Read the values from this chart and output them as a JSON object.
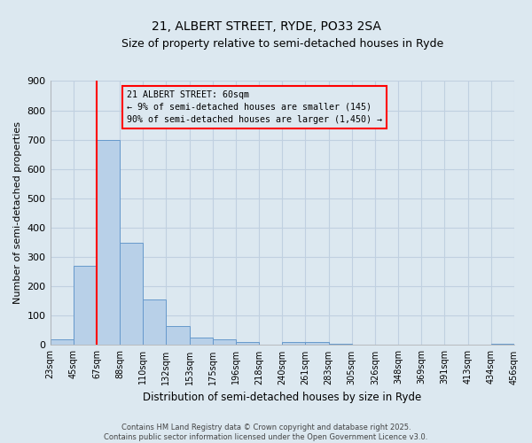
{
  "title": "21, ALBERT STREET, RYDE, PO33 2SA",
  "subtitle": "Size of property relative to semi-detached houses in Ryde",
  "xlabel": "Distribution of semi-detached houses by size in Ryde",
  "ylabel": "Number of semi-detached properties",
  "bin_labels": [
    "23sqm",
    "45sqm",
    "67sqm",
    "88sqm",
    "110sqm",
    "132sqm",
    "153sqm",
    "175sqm",
    "196sqm",
    "218sqm",
    "240sqm",
    "261sqm",
    "283sqm",
    "305sqm",
    "326sqm",
    "348sqm",
    "369sqm",
    "391sqm",
    "413sqm",
    "434sqm",
    "456sqm"
  ],
  "bar_heights": [
    20,
    270,
    700,
    350,
    155,
    65,
    25,
    20,
    10,
    0,
    10,
    10,
    5,
    0,
    0,
    0,
    0,
    0,
    0,
    5
  ],
  "bar_color": "#b8d0e8",
  "bar_edge_color": "#6699cc",
  "grid_color": "#c0d0e0",
  "background_color": "#dce8f0",
  "red_line_x": 2,
  "annotation_title": "21 ALBERT STREET: 60sqm",
  "annotation_line1": "← 9% of semi-detached houses are smaller (145)",
  "annotation_line2": "90% of semi-detached houses are larger (1,450) →",
  "ylim": [
    0,
    900
  ],
  "yticks": [
    0,
    100,
    200,
    300,
    400,
    500,
    600,
    700,
    800,
    900
  ],
  "title_fontsize": 10,
  "subtitle_fontsize": 9,
  "footer_line1": "Contains HM Land Registry data © Crown copyright and database right 2025.",
  "footer_line2": "Contains public sector information licensed under the Open Government Licence v3.0."
}
